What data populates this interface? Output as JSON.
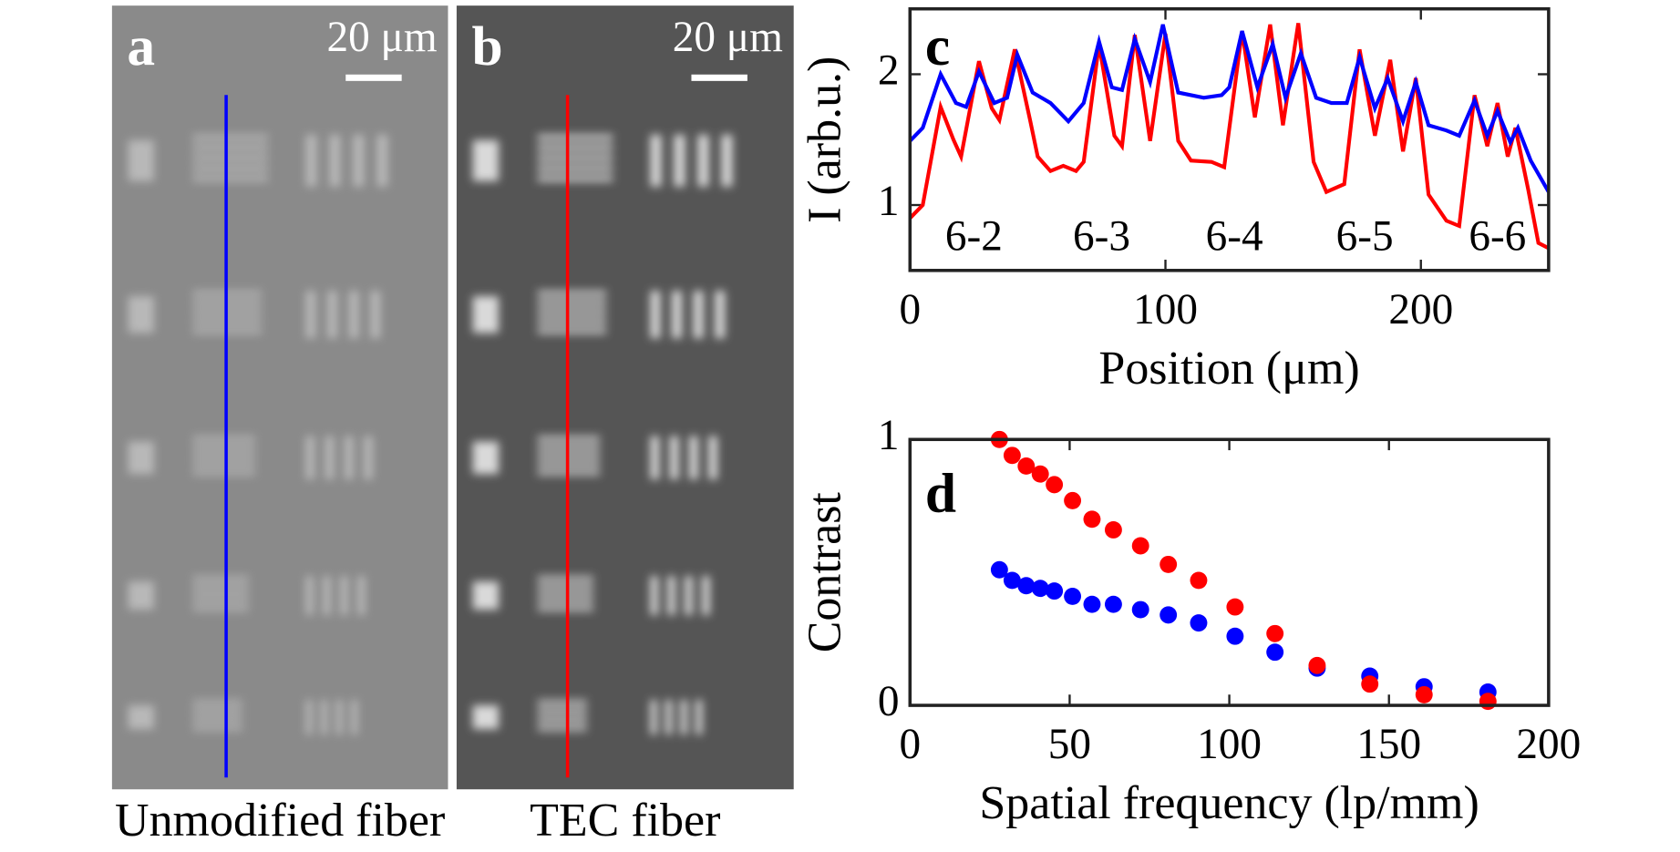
{
  "images": [
    {
      "label": "a",
      "scale": "20 μm",
      "caption": "Unmodified fiber",
      "line_color": "#0000ff",
      "background": "#8a8a8a"
    },
    {
      "label": "b",
      "scale": "20 μm",
      "caption": "TEC fiber",
      "line_color": "#ff0000",
      "background": "#555555"
    }
  ],
  "chart_data": [
    {
      "type": "line",
      "label": "c",
      "xlabel": "Position (μm)",
      "ylabel": "I (arb.u.)",
      "xlim": [
        0,
        250
      ],
      "xticks": [
        0,
        100,
        200
      ],
      "ylim": [
        0.5,
        2.5
      ],
      "yticks": [
        1,
        2
      ],
      "annotations": [
        {
          "text": "6-2",
          "x": 25
        },
        {
          "text": "6-3",
          "x": 75
        },
        {
          "text": "6-4",
          "x": 127
        },
        {
          "text": "6-5",
          "x": 178
        },
        {
          "text": "6-6",
          "x": 230
        }
      ],
      "series": [
        {
          "color": "#ff0000",
          "x": [
            0,
            5,
            12,
            17,
            20,
            27,
            32,
            35,
            41,
            47,
            50,
            55,
            60,
            65,
            68,
            74,
            80,
            83,
            88,
            94,
            100,
            105,
            110,
            118,
            123,
            130,
            135,
            141,
            146,
            152,
            158,
            163,
            170,
            176,
            182,
            188,
            193,
            198,
            203,
            210,
            215,
            221,
            226,
            230,
            234,
            237,
            242,
            246,
            250
          ],
          "values": [
            0.9,
            1.0,
            1.75,
            1.5,
            1.37,
            2.1,
            1.74,
            1.65,
            2.19,
            1.65,
            1.37,
            1.26,
            1.3,
            1.26,
            1.33,
            2.23,
            1.53,
            1.45,
            2.3,
            1.49,
            2.31,
            1.49,
            1.34,
            1.33,
            1.29,
            2.33,
            1.67,
            2.38,
            1.61,
            2.39,
            1.33,
            1.1,
            1.16,
            2.19,
            1.53,
            2.11,
            1.41,
            1.97,
            1.08,
            0.88,
            0.84,
            1.84,
            1.45,
            1.78,
            1.37,
            1.59,
            1.12,
            0.71,
            0.67
          ]
        },
        {
          "color": "#0000ff",
          "x": [
            0,
            5,
            12,
            18,
            22,
            27,
            33,
            38,
            42,
            48,
            55,
            62,
            68,
            74,
            79,
            83,
            88,
            94,
            99,
            105,
            115,
            122,
            125,
            130,
            136,
            142,
            147,
            153,
            159,
            165,
            171,
            176,
            182,
            187,
            193,
            198,
            203,
            210,
            215,
            221,
            226,
            230,
            235,
            238,
            243,
            250
          ],
          "values": [
            1.49,
            1.59,
            2.0,
            1.78,
            1.75,
            2.02,
            1.78,
            1.82,
            2.15,
            1.86,
            1.78,
            1.64,
            1.78,
            2.25,
            1.9,
            1.88,
            2.27,
            1.94,
            2.38,
            1.86,
            1.82,
            1.84,
            1.9,
            2.33,
            1.9,
            2.23,
            1.82,
            2.16,
            1.82,
            1.78,
            1.78,
            2.13,
            1.74,
            1.97,
            1.64,
            1.94,
            1.61,
            1.57,
            1.53,
            1.8,
            1.53,
            1.72,
            1.48,
            1.59,
            1.34,
            1.1
          ]
        }
      ]
    },
    {
      "type": "scatter",
      "label": "d",
      "xlabel": "Spatial frequency (lp/mm)",
      "ylabel": "Contrast",
      "xlim": [
        0,
        200
      ],
      "xticks": [
        0,
        50,
        100,
        150,
        200
      ],
      "ylim": [
        0,
        1
      ],
      "yticks": [
        0,
        1
      ],
      "x": [
        28,
        32,
        36.4,
        40.8,
        45.2,
        50.9,
        57,
        63.7,
        72.2,
        80.9,
        90.4,
        101.8,
        114.3,
        127.5,
        144,
        161,
        181
      ],
      "series": [
        {
          "color": "#0000ff",
          "values": [
            0.51,
            0.47,
            0.45,
            0.44,
            0.43,
            0.41,
            0.38,
            0.38,
            0.36,
            0.34,
            0.31,
            0.26,
            0.2,
            0.14,
            0.11,
            0.07,
            0.05
          ]
        },
        {
          "color": "#ff0000",
          "values": [
            1.0,
            0.94,
            0.9,
            0.87,
            0.83,
            0.77,
            0.7,
            0.66,
            0.6,
            0.53,
            0.47,
            0.37,
            0.27,
            0.15,
            0.08,
            0.04,
            0.015
          ]
        }
      ]
    }
  ]
}
